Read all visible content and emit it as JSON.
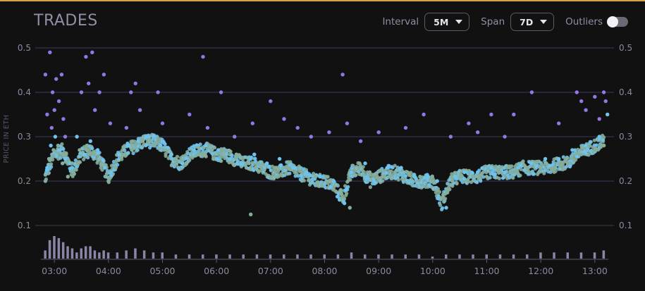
{
  "title": "TRADES",
  "controls": {
    "interval_label": "Interval",
    "interval_value": "5M",
    "span_label": "Span",
    "span_value": "7D",
    "outliers_label": "Outliers",
    "outliers_on": false
  },
  "colors": {
    "accent_line": "#d9a24a",
    "purple": "#9476e6",
    "blue": "#6fc4ef",
    "green": "#86ad9a",
    "volume": "#8a84a6",
    "grid": "#3c3c55"
  },
  "chart_data": {
    "type": "scatter",
    "title": "TRADES",
    "ylabel": "PRICE IN ETH",
    "xlabel": "",
    "ylim": [
      0.1,
      0.5
    ],
    "ytick_labels": [
      "0.5",
      "0.4",
      "0.3",
      "0.2",
      "0.1"
    ],
    "yticks": [
      0.5,
      0.4,
      0.3,
      0.2,
      0.1
    ],
    "xlim": [
      "02:45",
      "13:15"
    ],
    "xtick_labels": [
      "03:00",
      "04:00",
      "05:00",
      "06:00",
      "07:00",
      "08:00",
      "09:00",
      "10:00",
      "11:00",
      "12:00",
      "13:00"
    ],
    "grid": true,
    "trend_x": [
      "02:50",
      "03:00",
      "03:10",
      "03:20",
      "03:30",
      "03:40",
      "03:50",
      "04:00",
      "04:10",
      "04:20",
      "04:30",
      "04:40",
      "04:50",
      "05:00",
      "05:10",
      "05:20",
      "05:30",
      "05:40",
      "05:50",
      "06:00",
      "06:10",
      "06:20",
      "06:30",
      "06:40",
      "06:50",
      "07:00",
      "07:10",
      "07:20",
      "07:30",
      "07:40",
      "07:50",
      "08:00",
      "08:10",
      "08:20",
      "08:30",
      "08:40",
      "08:50",
      "09:00",
      "09:10",
      "09:20",
      "09:30",
      "09:40",
      "09:50",
      "10:00",
      "10:10",
      "10:20",
      "10:30",
      "10:40",
      "10:50",
      "11:00",
      "11:10",
      "11:20",
      "11:30",
      "11:40",
      "11:50",
      "12:00",
      "12:10",
      "12:20",
      "12:30",
      "12:40",
      "12:50",
      "13:00",
      "13:10"
    ],
    "trend_y": [
      0.21,
      0.26,
      0.27,
      0.22,
      0.26,
      0.27,
      0.25,
      0.21,
      0.25,
      0.27,
      0.28,
      0.29,
      0.29,
      0.28,
      0.25,
      0.24,
      0.26,
      0.27,
      0.27,
      0.26,
      0.26,
      0.25,
      0.24,
      0.24,
      0.23,
      0.22,
      0.22,
      0.23,
      0.22,
      0.21,
      0.2,
      0.2,
      0.19,
      0.16,
      0.22,
      0.23,
      0.2,
      0.21,
      0.22,
      0.22,
      0.21,
      0.2,
      0.2,
      0.2,
      0.15,
      0.2,
      0.21,
      0.21,
      0.21,
      0.22,
      0.22,
      0.22,
      0.22,
      0.23,
      0.23,
      0.23,
      0.23,
      0.24,
      0.24,
      0.26,
      0.27,
      0.28,
      0.29
    ],
    "series": [
      {
        "color": "purple",
        "x": [
          "02:50",
          "02:52",
          "02:55",
          "02:57",
          "02:58",
          "03:00",
          "03:02",
          "03:05",
          "03:08",
          "03:10",
          "03:12",
          "03:30",
          "03:35",
          "03:38",
          "03:42",
          "03:45",
          "03:50",
          "03:55",
          "04:02",
          "04:20",
          "04:25",
          "04:30",
          "04:35",
          "04:55",
          "05:00",
          "05:30",
          "05:45",
          "05:50",
          "06:05",
          "06:20",
          "06:40",
          "07:00",
          "07:15",
          "07:30",
          "07:45",
          "08:05",
          "08:20",
          "08:25",
          "08:40",
          "09:00",
          "09:30",
          "09:50",
          "10:20",
          "10:40",
          "10:50",
          "11:05",
          "11:20",
          "11:30",
          "11:50",
          "12:20",
          "12:40",
          "12:45",
          "12:50",
          "13:00",
          "13:05",
          "13:10",
          "13:12"
        ],
        "y": [
          0.44,
          0.35,
          0.49,
          0.32,
          0.4,
          0.36,
          0.43,
          0.38,
          0.44,
          0.34,
          0.3,
          0.4,
          0.48,
          0.42,
          0.49,
          0.36,
          0.4,
          0.44,
          0.33,
          0.32,
          0.4,
          0.42,
          0.36,
          0.4,
          0.33,
          0.35,
          0.48,
          0.32,
          0.4,
          0.3,
          0.33,
          0.38,
          0.34,
          0.32,
          0.3,
          0.31,
          0.44,
          0.33,
          0.29,
          0.31,
          0.32,
          0.35,
          0.3,
          0.33,
          0.31,
          0.35,
          0.3,
          0.35,
          0.4,
          0.33,
          0.4,
          0.38,
          0.36,
          0.39,
          0.34,
          0.4,
          0.38
        ]
      },
      {
        "color": "blue",
        "x": [
          "02:52",
          "02:56",
          "03:01",
          "03:06",
          "03:12",
          "03:18",
          "03:25",
          "03:33",
          "03:40",
          "03:48",
          "03:56",
          "04:03",
          "04:12",
          "04:22",
          "04:33",
          "04:45",
          "04:58",
          "05:10",
          "05:22",
          "05:35",
          "05:48",
          "06:02",
          "06:15",
          "06:28",
          "06:42",
          "06:56",
          "07:10",
          "07:25",
          "07:40",
          "07:55",
          "08:10",
          "08:22",
          "08:30",
          "08:45",
          "08:55",
          "09:10",
          "09:25",
          "09:40",
          "09:55",
          "10:05",
          "10:15",
          "10:25",
          "10:35",
          "10:50",
          "11:05",
          "11:20",
          "11:35",
          "11:50",
          "12:05",
          "12:20",
          "12:35",
          "12:50",
          "13:05",
          "13:14"
        ],
        "y": [
          0.23,
          0.28,
          0.3,
          0.27,
          0.25,
          0.24,
          0.3,
          0.26,
          0.29,
          0.27,
          0.23,
          0.22,
          0.26,
          0.28,
          0.29,
          0.3,
          0.28,
          0.26,
          0.24,
          0.27,
          0.28,
          0.27,
          0.25,
          0.24,
          0.26,
          0.24,
          0.25,
          0.23,
          0.22,
          0.21,
          0.2,
          0.15,
          0.22,
          0.24,
          0.2,
          0.23,
          0.23,
          0.21,
          0.21,
          0.2,
          0.14,
          0.21,
          0.22,
          0.22,
          0.23,
          0.22,
          0.23,
          0.24,
          0.25,
          0.25,
          0.27,
          0.28,
          0.3,
          0.35
        ]
      },
      {
        "color": "green",
        "x": [
          "02:50",
          "02:54",
          "02:59",
          "03:04",
          "03:09",
          "03:15",
          "03:20",
          "03:28",
          "03:36",
          "03:44",
          "03:52",
          "04:00",
          "04:08",
          "04:16",
          "04:26",
          "04:38",
          "04:50",
          "05:02",
          "05:14",
          "05:26",
          "05:40",
          "05:55",
          "06:08",
          "06:22",
          "06:36",
          "06:38",
          "06:50",
          "07:05",
          "07:20",
          "07:35",
          "07:50",
          "08:05",
          "08:18",
          "08:28",
          "08:38",
          "08:50",
          "09:05",
          "09:18",
          "09:32",
          "09:46",
          "10:00",
          "10:12",
          "10:22",
          "10:32",
          "10:45",
          "11:00",
          "11:15",
          "11:30",
          "11:45",
          "12:00",
          "12:15",
          "12:30",
          "12:45",
          "13:00",
          "13:10"
        ],
        "y": [
          0.2,
          0.25,
          0.27,
          0.28,
          0.24,
          0.21,
          0.24,
          0.27,
          0.28,
          0.26,
          0.24,
          0.2,
          0.23,
          0.26,
          0.27,
          0.29,
          0.28,
          0.27,
          0.25,
          0.24,
          0.26,
          0.27,
          0.27,
          0.26,
          0.24,
          0.125,
          0.23,
          0.23,
          0.23,
          0.22,
          0.21,
          0.2,
          0.18,
          0.14,
          0.23,
          0.22,
          0.21,
          0.22,
          0.22,
          0.21,
          0.2,
          0.17,
          0.2,
          0.21,
          0.21,
          0.21,
          0.22,
          0.22,
          0.23,
          0.23,
          0.23,
          0.24,
          0.26,
          0.27,
          0.28
        ]
      }
    ],
    "volume": {
      "x": [
        "02:50",
        "02:55",
        "03:00",
        "03:05",
        "03:10",
        "03:15",
        "03:20",
        "03:25",
        "03:30",
        "03:35",
        "03:40",
        "03:45",
        "03:50",
        "03:55",
        "04:00",
        "04:10",
        "04:20",
        "04:30",
        "04:40",
        "04:50",
        "05:00",
        "05:15",
        "05:30",
        "05:45",
        "06:00",
        "06:15",
        "06:30",
        "06:45",
        "07:00",
        "07:15",
        "07:30",
        "07:45",
        "08:00",
        "08:15",
        "08:30",
        "08:45",
        "09:00",
        "09:15",
        "09:30",
        "09:45",
        "10:00",
        "10:15",
        "10:30",
        "10:45",
        "11:00",
        "11:15",
        "11:30",
        "11:45",
        "12:00",
        "12:15",
        "12:30",
        "12:45",
        "13:00",
        "13:10"
      ],
      "values": [
        4,
        9,
        11,
        10,
        8,
        6,
        5,
        3,
        5,
        6,
        6,
        4,
        3,
        4,
        3,
        3,
        4,
        5,
        4,
        3,
        3,
        2,
        2,
        2,
        2,
        2,
        2,
        2,
        2,
        2,
        2,
        2,
        2,
        2,
        3,
        2,
        2,
        2,
        2,
        2,
        1,
        2,
        2,
        2,
        2,
        2,
        2,
        2,
        3,
        3,
        3,
        3,
        3,
        4
      ]
    }
  }
}
